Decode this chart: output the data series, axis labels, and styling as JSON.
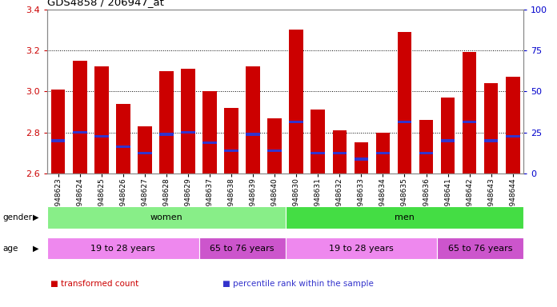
{
  "title": "GDS4858 / 206947_at",
  "samples": [
    "GSM948623",
    "GSM948624",
    "GSM948625",
    "GSM948626",
    "GSM948627",
    "GSM948628",
    "GSM948629",
    "GSM948637",
    "GSM948638",
    "GSM948639",
    "GSM948640",
    "GSM948630",
    "GSM948631",
    "GSM948632",
    "GSM948633",
    "GSM948634",
    "GSM948635",
    "GSM948636",
    "GSM948641",
    "GSM948642",
    "GSM948643",
    "GSM948644"
  ],
  "bar_values": [
    3.01,
    3.15,
    3.12,
    2.94,
    2.83,
    3.1,
    3.11,
    3.0,
    2.92,
    3.12,
    2.87,
    3.3,
    2.91,
    2.81,
    2.75,
    2.8,
    3.29,
    2.86,
    2.97,
    3.19,
    3.04,
    3.07
  ],
  "blue_marker_values": [
    2.76,
    2.8,
    2.78,
    2.73,
    2.7,
    2.79,
    2.8,
    2.75,
    2.71,
    2.79,
    2.71,
    2.85,
    2.7,
    2.7,
    2.67,
    2.7,
    2.85,
    2.7,
    2.76,
    2.85,
    2.76,
    2.78
  ],
  "ylim": [
    2.6,
    3.4
  ],
  "yticks": [
    2.6,
    2.8,
    3.0,
    3.2,
    3.4
  ],
  "right_yticks": [
    0,
    25,
    50,
    75,
    100
  ],
  "bar_color": "#cc0000",
  "blue_color": "#3333cc",
  "base_value": 2.6,
  "gender_groups": [
    {
      "label": "women",
      "start": 0,
      "end": 11,
      "color": "#88ee88"
    },
    {
      "label": "men",
      "start": 11,
      "end": 22,
      "color": "#44dd44"
    }
  ],
  "age_groups": [
    {
      "label": "19 to 28 years",
      "start": 0,
      "end": 7,
      "color": "#ee88ee"
    },
    {
      "label": "65 to 76 years",
      "start": 7,
      "end": 11,
      "color": "#cc55cc"
    },
    {
      "label": "19 to 28 years",
      "start": 11,
      "end": 18,
      "color": "#ee88ee"
    },
    {
      "label": "65 to 76 years",
      "start": 18,
      "end": 22,
      "color": "#cc55cc"
    }
  ],
  "legend_items": [
    {
      "label": "transformed count",
      "color": "#cc0000"
    },
    {
      "label": "percentile rank within the sample",
      "color": "#3333cc"
    }
  ],
  "right_axis_color": "#0000cc",
  "left_axis_color": "#cc0000",
  "bg_color": "#ffffff"
}
